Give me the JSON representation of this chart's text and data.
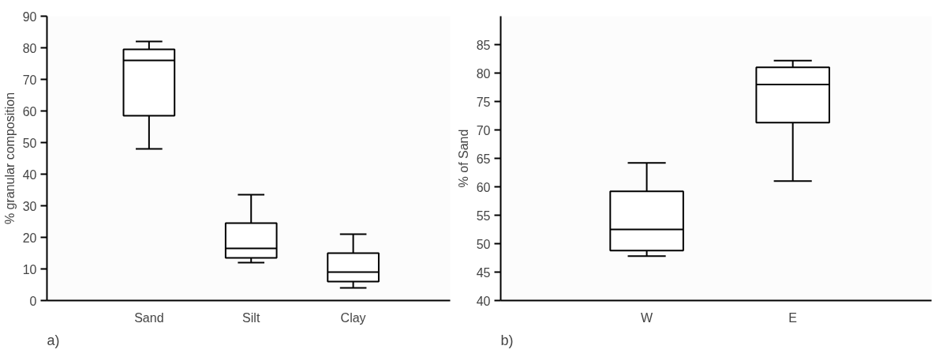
{
  "chart_data": [
    {
      "type": "box",
      "ylabel": "% granular composition",
      "categories": [
        "Sand",
        "Silt",
        "Clay"
      ],
      "ylim": [
        0,
        90
      ],
      "yticks": [
        0,
        10,
        20,
        30,
        40,
        50,
        60,
        70,
        80,
        90
      ],
      "annotations": [
        "a)"
      ],
      "boxes": [
        {
          "low": 48,
          "q1": 58.5,
          "median": 76,
          "q3": 79.5,
          "high": 82
        },
        {
          "low": 12,
          "q1": 13.5,
          "median": 16.5,
          "q3": 24.5,
          "high": 33.5
        },
        {
          "low": 4,
          "q1": 6,
          "median": 9,
          "q3": 15,
          "high": 21
        }
      ]
    },
    {
      "type": "box",
      "ylabel": "% of Sand",
      "categories": [
        "W",
        "E"
      ],
      "ylim": [
        40,
        90
      ],
      "yticks": [
        40,
        45,
        50,
        55,
        60,
        65,
        70,
        75,
        80,
        85
      ],
      "annotations": [
        "b)"
      ],
      "boxes": [
        {
          "low": 47.8,
          "q1": 48.8,
          "median": 52.5,
          "q3": 59.2,
          "high": 64.2
        },
        {
          "low": 61,
          "q1": 71.3,
          "median": 78,
          "q3": 81,
          "high": 82.2
        }
      ]
    }
  ]
}
